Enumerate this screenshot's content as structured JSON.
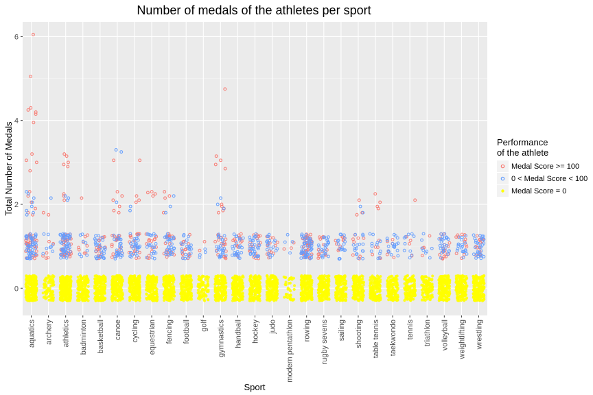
{
  "chart_data": {
    "type": "scatter",
    "title": "Number of medals of the athletes per sport",
    "xlabel": "Sport",
    "ylabel": "Total Number of Medals",
    "ylim": [
      -0.65,
      6.35
    ],
    "yticks": [
      0,
      2,
      4,
      6
    ],
    "grid": true,
    "jitter": {
      "x": 0.32,
      "y": 0.3
    },
    "categories": [
      "aquatics",
      "archery",
      "athletics",
      "badminton",
      "basketball",
      "canoe",
      "cycling",
      "equestrian",
      "fencing",
      "football",
      "golf",
      "gymnastics",
      "handball",
      "hockey",
      "judo",
      "modern pentathlon",
      "rowing",
      "rugby sevens",
      "sailing",
      "shooting",
      "table tennis",
      "taekwondo",
      "tennis",
      "triathlon",
      "volleyball",
      "weightlifting",
      "wrestling"
    ],
    "legend": {
      "title_lines": [
        "Performance",
        "of the athlete"
      ],
      "position": "right"
    },
    "series": [
      {
        "name": "Medal Score >= 100",
        "color": "#f8766d",
        "outlier_points": [
          {
            "sport": "aquatics",
            "y": [
              6.05,
              5.05,
              4.3,
              4.25,
              4.2,
              4.15,
              3.95,
              3.2,
              3.05,
              3.0,
              2.8,
              2.3,
              2.2,
              2.05,
              1.9,
              1.8,
              1.75
            ]
          },
          {
            "sport": "archery",
            "y": [
              1.8,
              1.75
            ]
          },
          {
            "sport": "athletics",
            "y": [
              3.2,
              3.15,
              3.0,
              2.95,
              2.9,
              2.25,
              2.2,
              2.1
            ]
          },
          {
            "sport": "badminton",
            "y": [
              2.15
            ]
          },
          {
            "sport": "canoe",
            "y": [
              3.05,
              2.3,
              2.2,
              2.1,
              1.95,
              1.85,
              1.8
            ]
          },
          {
            "sport": "cycling",
            "y": [
              3.05,
              2.2,
              2.1,
              2.05
            ]
          },
          {
            "sport": "equestrian",
            "y": [
              2.3,
              2.28,
              2.25,
              2.2
            ]
          },
          {
            "sport": "fencing",
            "y": [
              2.3,
              2.2,
              2.15,
              1.8
            ]
          },
          {
            "sport": "gymnastics",
            "y": [
              4.75,
              3.15,
              3.05,
              2.95,
              2.85,
              2.0,
              1.95,
              1.9,
              1.85,
              1.8
            ]
          },
          {
            "sport": "shooting",
            "y": [
              2.1,
              1.8,
              1.75
            ]
          },
          {
            "sport": "table tennis",
            "y": [
              2.25,
              2.05,
              1.95,
              1.9
            ]
          },
          {
            "sport": "tennis",
            "y": [
              2.1
            ]
          }
        ],
        "bands": [
          {
            "center": 1,
            "counts": [
              40,
              6,
              35,
              8,
              18,
              20,
              18,
              14,
              18,
              14,
              2,
              18,
              14,
              18,
              12,
              3,
              40,
              14,
              10,
              8,
              6,
              6,
              4,
              4,
              16,
              12,
              14
            ]
          }
        ]
      },
      {
        "name": "0 < Medal Score < 100",
        "color": "#619cff",
        "outlier_points": [
          {
            "sport": "aquatics",
            "y": [
              2.3,
              2.25,
              2.15,
              2.05,
              1.95,
              1.85,
              1.8,
              1.75
            ]
          },
          {
            "sport": "archery",
            "y": [
              2.15
            ]
          },
          {
            "sport": "athletics",
            "y": [
              2.2,
              2.15,
              2.1
            ]
          },
          {
            "sport": "canoe",
            "y": [
              3.3,
              3.25,
              2.05
            ]
          },
          {
            "sport": "cycling",
            "y": [
              1.95,
              1.85
            ]
          },
          {
            "sport": "fencing",
            "y": [
              2.2,
              1.95,
              1.8
            ]
          },
          {
            "sport": "gymnastics",
            "y": [
              2.15,
              2.0,
              1.9
            ]
          },
          {
            "sport": "shooting",
            "y": [
              1.95,
              1.8
            ]
          }
        ],
        "bands": [
          {
            "center": 1,
            "counts": [
              50,
              8,
              50,
              8,
              30,
              28,
              28,
              20,
              28,
              22,
              4,
              26,
              26,
              30,
              20,
              4,
              50,
              24,
              18,
              16,
              12,
              18,
              10,
              8,
              26,
              20,
              30
            ]
          }
        ]
      },
      {
        "name": "Medal Score = 0",
        "color": "#ffff00",
        "outlier_points": [],
        "bands": [
          {
            "center": 0,
            "counts": [
              260,
              80,
              260,
              160,
              180,
              180,
              200,
              160,
              170,
              160,
              80,
              190,
              170,
              160,
              170,
              40,
              200,
              150,
              140,
              150,
              140,
              130,
              120,
              110,
              170,
              150,
              170
            ]
          }
        ]
      }
    ]
  }
}
